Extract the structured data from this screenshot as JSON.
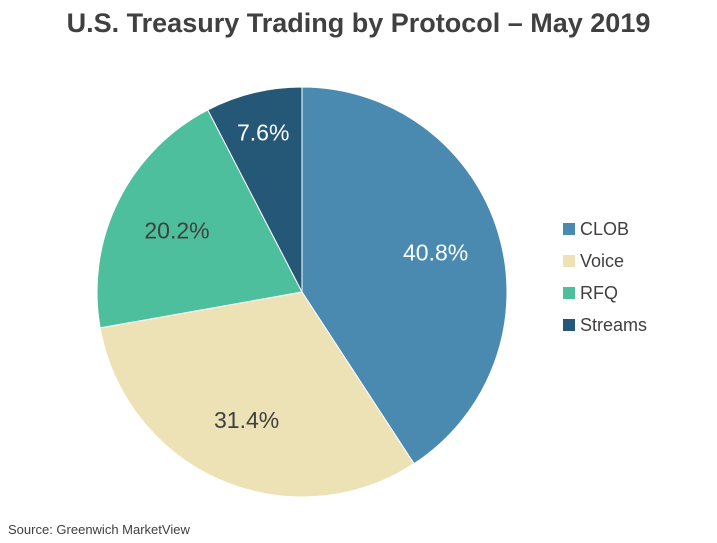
{
  "chart_data": {
    "type": "pie",
    "title": "U.S. Treasury Trading by Protocol  – May 2019",
    "source": "Source: Greenwich MarketView",
    "start_angle_deg": 0,
    "direction": "clockwise",
    "legend_position": "right",
    "slices": [
      {
        "label": "CLOB",
        "value": 40.8,
        "value_label": "40.8%",
        "color": "#4a89b0",
        "label_color": "#ffffff"
      },
      {
        "label": "Voice",
        "value": 31.4,
        "value_label": "31.4%",
        "color": "#ede2b5",
        "label_color": "#404040"
      },
      {
        "label": "RFQ",
        "value": 20.2,
        "value_label": "20.2%",
        "color": "#4dbf9c",
        "label_color": "#404040"
      },
      {
        "label": "Streams",
        "value": 7.6,
        "value_label": "7.6%",
        "color": "#255877",
        "label_color": "#ffffff"
      }
    ]
  }
}
